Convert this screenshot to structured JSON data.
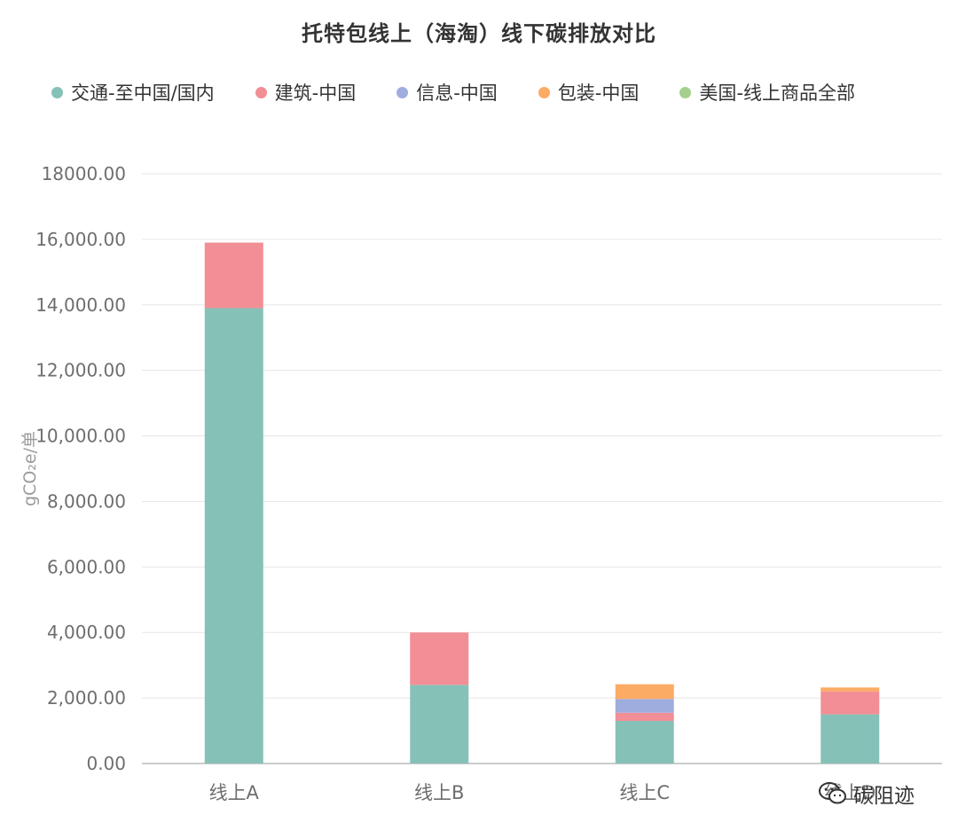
{
  "chart_data": {
    "type": "bar",
    "stacked": true,
    "title": "托特包线上（海淘）线下碳排放对比",
    "ylabel": "gCO₂e/单",
    "ylim": [
      0,
      18000
    ],
    "yticks": [
      "0.00",
      "2,000.00",
      "4,000.00",
      "6,000.00",
      "8,000.00",
      "10,000.00",
      "12,000.00",
      "14,000.00",
      "16,000.00",
      "18000.00"
    ],
    "ytick_values": [
      0,
      2000,
      4000,
      6000,
      8000,
      10000,
      12000,
      14000,
      16000,
      18000
    ],
    "categories": [
      "线上A",
      "线上B",
      "线上C",
      "线上D"
    ],
    "grid": true,
    "legend_position": "top",
    "series": [
      {
        "name": "交通-至中国/国内",
        "color": "#86c1b8",
        "values": [
          13900,
          2400,
          1300,
          1500
        ]
      },
      {
        "name": "建筑-中国",
        "color": "#f28e96",
        "values": [
          2000,
          1600,
          250,
          700
        ]
      },
      {
        "name": "信息-中国",
        "color": "#9fadde",
        "values": [
          0,
          0,
          420,
          0
        ]
      },
      {
        "name": "包装-中国",
        "color": "#fbab63",
        "values": [
          0,
          0,
          450,
          120
        ]
      },
      {
        "name": "美国-线上商品全部",
        "color": "#a5cf8e",
        "values": [
          0,
          0,
          0,
          0
        ]
      }
    ]
  },
  "watermark": {
    "text": "碳阻迹",
    "icon": "wechat-icon"
  },
  "colors": {
    "axis": "#cccccc",
    "grid": "#e6e6e6",
    "tick_text": "#6e6e6e"
  }
}
